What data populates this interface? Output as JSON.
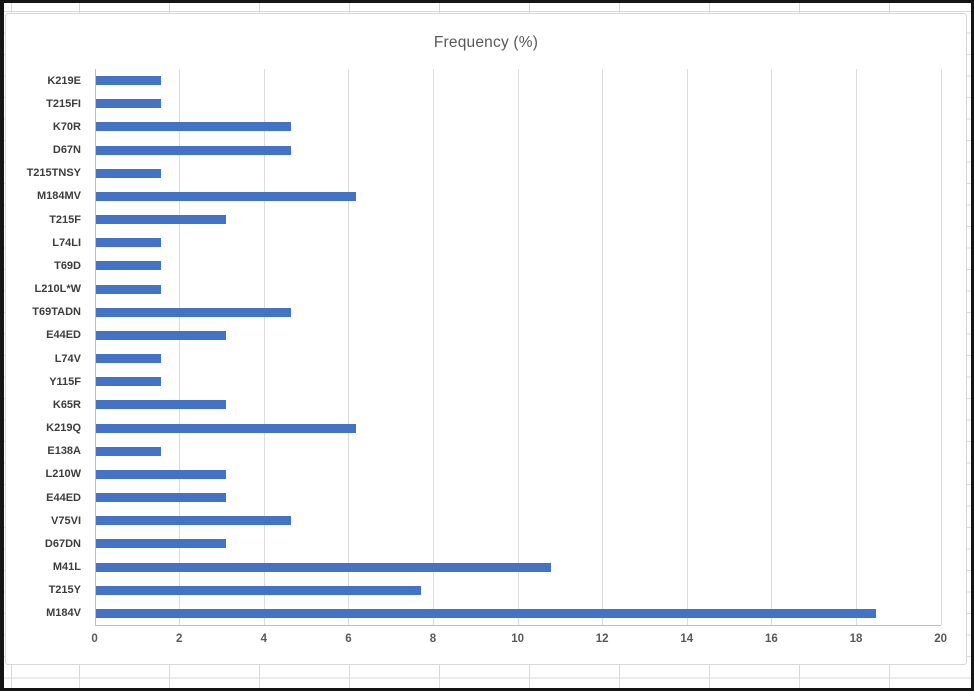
{
  "frame": {
    "border_color": "#151515",
    "background": "#FFFFFF",
    "chart_border_color": "#D8D8D8"
  },
  "spreadsheet": {
    "gridline_color": "#D9D9D9"
  },
  "chart_data": {
    "type": "bar",
    "orientation": "horizontal",
    "title": "Frequency (%)",
    "categories": [
      "K219E",
      "T215FI",
      "K70R",
      "D67N",
      "T215TNSY",
      "M184MV",
      "T215F",
      "L74LI",
      "T69D",
      "L210L*W",
      "T69TADN",
      "E44ED",
      "L74V",
      "Y115F",
      "K65R",
      "K219Q",
      "E138A",
      "L210W",
      "E44ED",
      "V75VI",
      "D67DN",
      "M41L",
      "T215Y",
      "M184V"
    ],
    "values": [
      1.54,
      1.54,
      4.62,
      4.62,
      1.54,
      6.15,
      3.08,
      1.54,
      1.54,
      1.54,
      4.62,
      3.08,
      1.54,
      1.54,
      3.08,
      6.15,
      1.54,
      3.08,
      3.08,
      4.62,
      3.08,
      10.77,
      7.69,
      18.46
    ],
    "xlim": [
      0,
      20
    ],
    "xticks": [
      0,
      2,
      4,
      6,
      8,
      10,
      12,
      14,
      16,
      18,
      20
    ],
    "grid": true,
    "legend": "none",
    "xlabel": "",
    "ylabel": "",
    "bar_color": "#4472C4",
    "title_color": "#595959",
    "axis_label_color": "#595959",
    "category_label_color": "#3D3D3D",
    "gridline_color": "#DCDCDC",
    "axis_line_color": "#BFBFBF"
  }
}
